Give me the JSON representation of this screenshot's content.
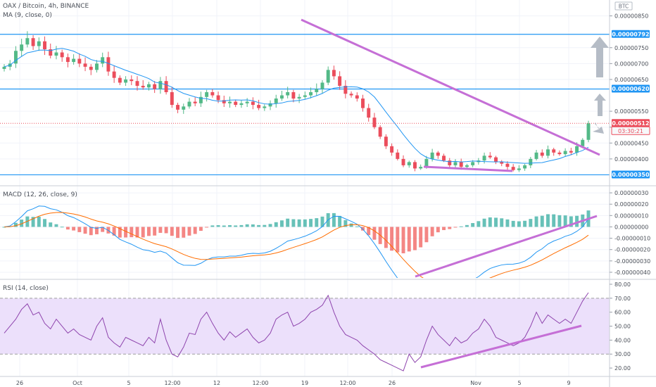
{
  "header": {
    "symbol_line": "OAX / Bitcoin, 4h, BINANCE",
    "ma_line": "MA (9, close, 0)",
    "currency": "BTC"
  },
  "macd_label": "MACD (12, 26, close, 9)",
  "rsi_label": "RSI (14, close)",
  "colors": {
    "up": "#53b987",
    "down": "#eb4d5c",
    "ma": "#2196f3",
    "hline": "#2196f3",
    "trend": "#c56fd6",
    "signal": "#ff6d00",
    "rsi": "#8e44ad",
    "rsi_band": "#ece0fb",
    "arrow": "#b5bcc6"
  },
  "x_ticks": [
    "26",
    "Oct",
    "5",
    "12:00",
    "12",
    "12:00",
    "19",
    "12:00",
    "26",
    "Nov",
    "5",
    "9"
  ],
  "price_ticks": [
    "0.00000850",
    "0.00000750",
    "0.00000700",
    "0.00000650",
    "0.00000550",
    "0.00000500",
    "0.00000450",
    "0.00000400"
  ],
  "macd_ticks": [
    "0.00000030",
    "0.00000020",
    "0.00000010",
    "0.00000000",
    "-0.00000010",
    "-0.00000020",
    "-0.00000030",
    "-0.00000040"
  ],
  "rsi_ticks": [
    "80.00",
    "70.00",
    "60.00",
    "50.00",
    "40.00",
    "30.00",
    "20.00"
  ],
  "price_badges": {
    "upper": "0.00000792",
    "middle": "0.00000620",
    "last": "0.00000512",
    "countdown": "03:30:21",
    "lower": "0.00000350"
  },
  "chart_data": [
    {
      "type": "candlestick",
      "title": "OAX / Bitcoin, 4h, BINANCE",
      "overlay": "MA (9, close, 0)",
      "ylim": [
        3.2e-06,
        9e-06
      ],
      "close": [
        6.9e-06,
        7e-06,
        7.4e-06,
        7.6e-06,
        7.8e-06,
        7.55e-06,
        7.7e-06,
        7.45e-06,
        7.25e-06,
        7.35e-06,
        7.2e-06,
        7.05e-06,
        7.15e-06,
        7e-06,
        6.9e-06,
        6.8e-06,
        7e-06,
        7.2e-06,
        6.75e-06,
        6.55e-06,
        6.4e-06,
        6.5e-06,
        6.45e-06,
        6.3e-06,
        6.25e-06,
        6.35e-06,
        6.2e-06,
        6.45e-06,
        6.1e-06,
        5.7e-06,
        5.55e-06,
        5.65e-06,
        5.8e-06,
        5.75e-06,
        5.95e-06,
        6.1e-06,
        6e-06,
        5.85e-06,
        5.75e-06,
        5.8e-06,
        5.7e-06,
        5.75e-06,
        5.8e-06,
        5.7e-06,
        5.6e-06,
        5.65e-06,
        5.75e-06,
        5.9e-06,
        6e-06,
        6.1e-06,
        5.9e-06,
        5.95e-06,
        6e-06,
        6.1e-06,
        6.2e-06,
        6.4e-06,
        6.8e-06,
        6.6e-06,
        6.3e-06,
        6.05e-06,
        6e-06,
        5.9e-06,
        5.6e-06,
        5.3e-06,
        5e-06,
        4.7e-06,
        4.4e-06,
        4.2e-06,
        4e-06,
        3.8e-06,
        3.9e-06,
        3.7e-06,
        3.75e-06,
        4e-06,
        4.2e-06,
        4.1e-06,
        3.95e-06,
        3.8e-06,
        3.9e-06,
        3.75e-06,
        3.8e-06,
        3.9e-06,
        3.95e-06,
        4.1e-06,
        4.05e-06,
        3.9e-06,
        3.85e-06,
        3.75e-06,
        3.65e-06,
        3.7e-06,
        3.8e-06,
        4e-06,
        4.2e-06,
        4.1e-06,
        4.3e-06,
        4.2e-06,
        4.15e-06,
        4.25e-06,
        4.2e-06,
        4.4e-06,
        4.6e-06,
        5.12e-06
      ],
      "price_lines": [
        "0.00000792",
        "0.00000620",
        "0.00000350"
      ],
      "last_price": "0.00000512"
    },
    {
      "type": "line",
      "title": "MACD (12, 26, close, 9)",
      "ylim": [
        -4.5e-07,
        3.5e-07
      ]
    },
    {
      "type": "line",
      "title": "RSI (14, close)",
      "ylim": [
        15,
        82
      ],
      "band": [
        30,
        70
      ],
      "values": [
        45,
        50,
        55,
        62,
        66,
        58,
        60,
        52,
        48,
        55,
        50,
        45,
        48,
        44,
        42,
        40,
        50,
        56,
        42,
        38,
        35,
        42,
        40,
        38,
        36,
        42,
        38,
        55,
        40,
        30,
        28,
        35,
        45,
        44,
        55,
        60,
        52,
        45,
        40,
        46,
        42,
        45,
        48,
        42,
        38,
        40,
        45,
        55,
        58,
        60,
        50,
        52,
        55,
        60,
        62,
        65,
        72,
        60,
        50,
        44,
        42,
        40,
        36,
        33,
        30,
        26,
        24,
        22,
        20,
        18,
        30,
        24,
        28,
        40,
        50,
        44,
        40,
        36,
        42,
        38,
        40,
        45,
        48,
        55,
        50,
        42,
        40,
        38,
        36,
        38,
        42,
        50,
        60,
        52,
        58,
        55,
        52,
        55,
        52,
        60,
        68,
        74
      ]
    }
  ]
}
